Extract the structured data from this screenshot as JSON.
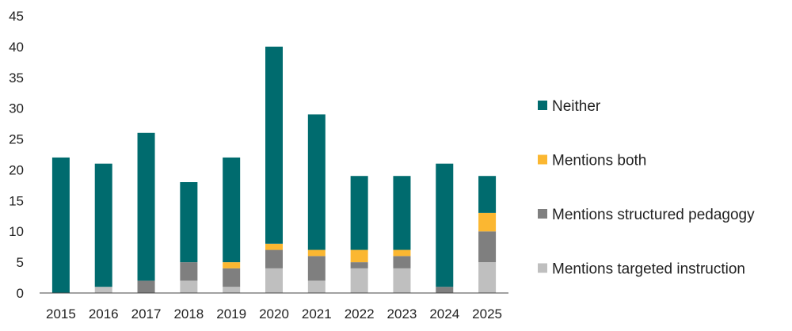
{
  "chart_data": {
    "type": "bar",
    "stacked": true,
    "title": "",
    "xlabel": "",
    "ylabel": "",
    "ylim": [
      0,
      45
    ],
    "yticks": [
      0,
      5,
      10,
      15,
      20,
      25,
      30,
      35,
      40,
      45
    ],
    "grid": false,
    "legend_position": "right",
    "categories": [
      "2015",
      "2016",
      "2017",
      "2018",
      "2019",
      "2020",
      "2021",
      "2022",
      "2023",
      "2024",
      "2025"
    ],
    "series": [
      {
        "name": "Mentions targeted instruction",
        "color": "#bfbfbf",
        "values": [
          0,
          1,
          0,
          2,
          1,
          4,
          2,
          4,
          4,
          0,
          5
        ]
      },
      {
        "name": "Mentions structured pedagogy",
        "color": "#7f7f7f",
        "values": [
          0,
          0,
          2,
          3,
          3,
          3,
          4,
          1,
          2,
          1,
          5
        ]
      },
      {
        "name": "Mentions both",
        "color": "#fbb731",
        "values": [
          0,
          0,
          0,
          0,
          1,
          1,
          1,
          2,
          1,
          0,
          3
        ]
      },
      {
        "name": "Neither",
        "color": "#006b6e",
        "values": [
          22,
          20,
          24,
          13,
          17,
          32,
          22,
          12,
          12,
          20,
          6
        ]
      }
    ],
    "legend_order": [
      "Neither",
      "Mentions both",
      "Mentions structured pedagogy",
      "Mentions targeted instruction"
    ]
  }
}
